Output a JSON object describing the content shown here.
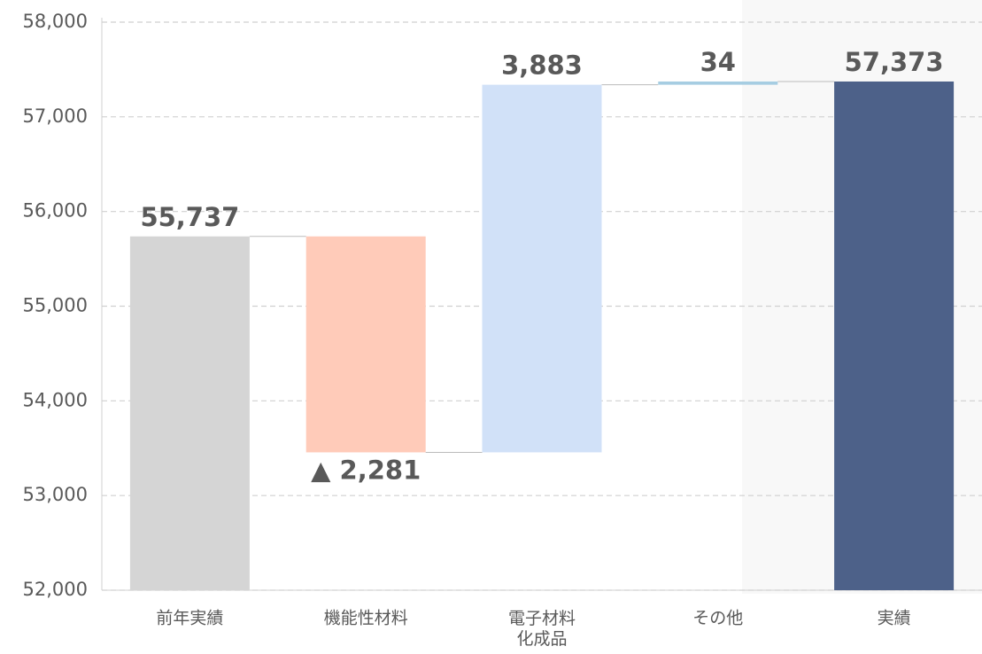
{
  "chart_data": {
    "type": "waterfall",
    "categories": [
      "前年実績",
      "機能性材料",
      "電子材料\n化成品",
      "その他",
      "実績"
    ],
    "values": [
      55737,
      -2281,
      3883,
      34,
      57373
    ],
    "value_labels": [
      "55,737",
      "▲ 2,281",
      "3,883",
      "34",
      "57,373"
    ],
    "totals": [
      true,
      false,
      false,
      false,
      true
    ],
    "colors": [
      "#d5d5d5",
      "#ffcbb9",
      "#d1e1f8",
      "#a6cde2",
      "#4d6189"
    ],
    "ylim": [
      52000,
      58000
    ],
    "yticks": [
      {
        "value": 52000,
        "label": "52,000"
      },
      {
        "value": 53000,
        "label": "53,000"
      },
      {
        "value": 54000,
        "label": "54,000"
      },
      {
        "value": 55000,
        "label": "55,000"
      },
      {
        "value": 56000,
        "label": "56,000"
      },
      {
        "value": 57000,
        "label": "57,000"
      },
      {
        "value": 58000,
        "label": "58,000"
      }
    ],
    "grid": true
  }
}
